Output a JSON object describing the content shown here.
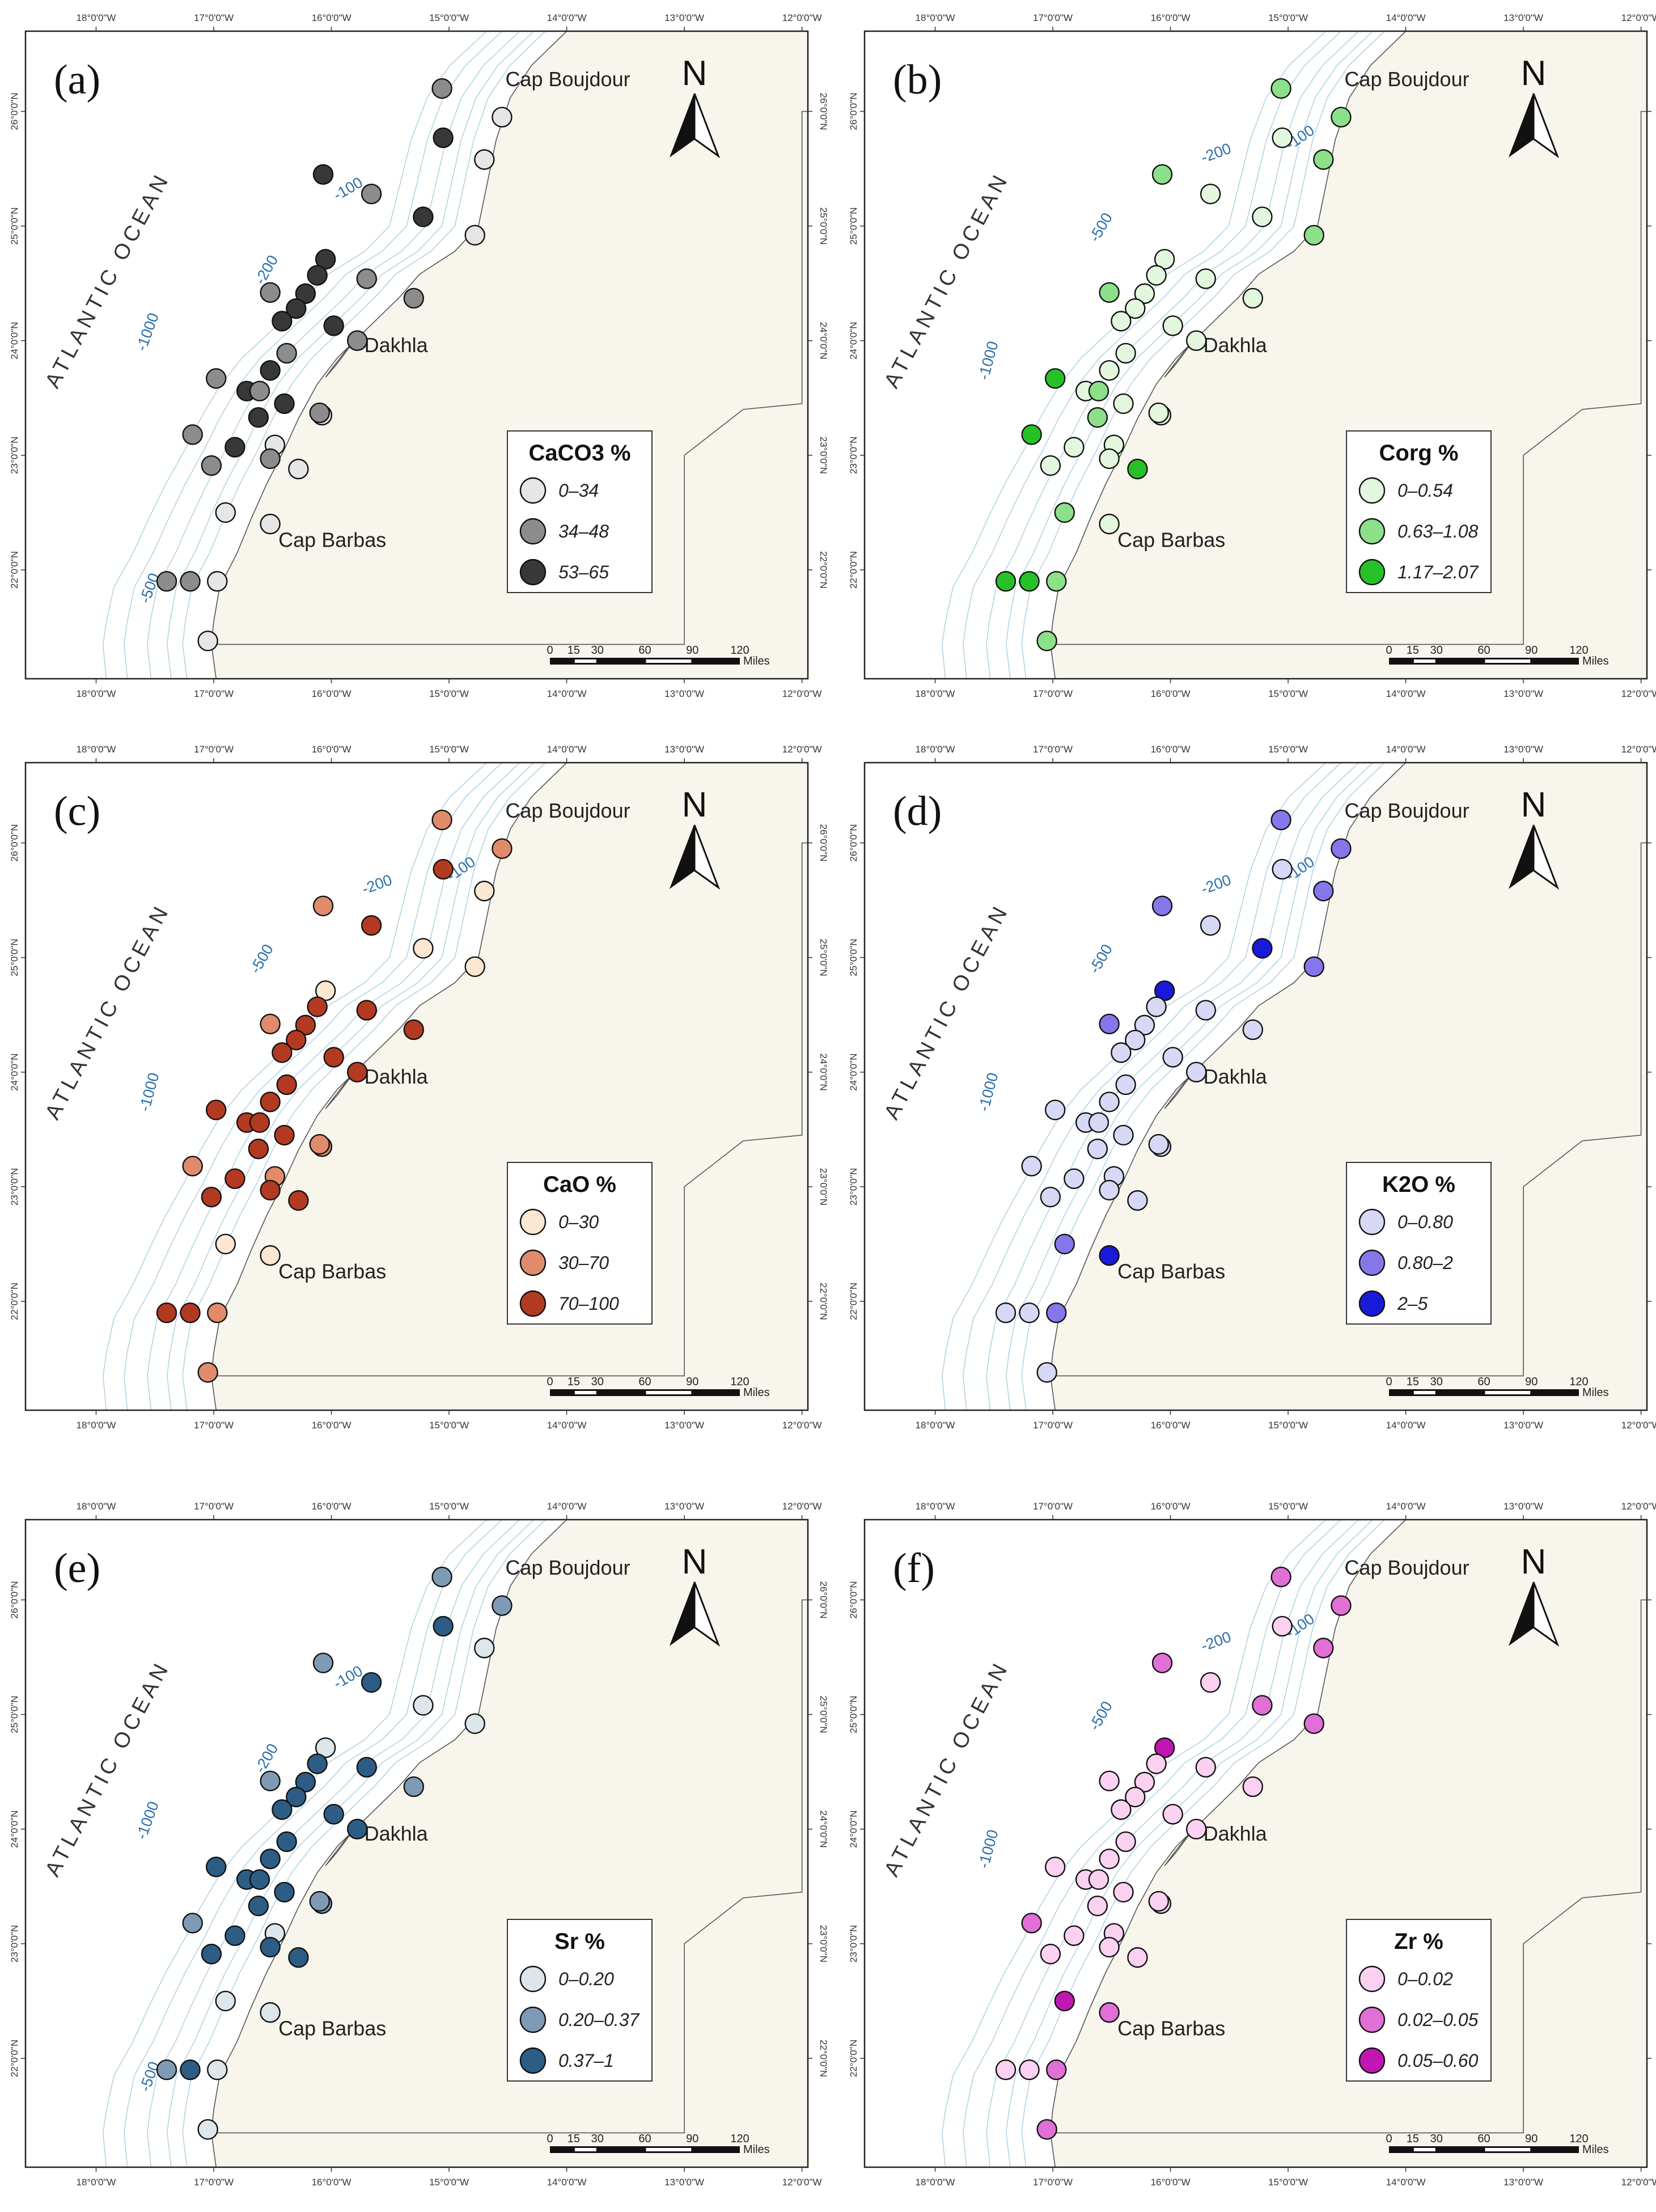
{
  "common": {
    "lon_ticks": [
      "18°0'0\"W",
      "17°0'0\"W",
      "16°0'0\"W",
      "15°0'0\"W",
      "14°0'0\"W",
      "13°0'0\"W",
      "12°0'0\"W"
    ],
    "lat_ticks": [
      "26°0'0\"N",
      "25°0'0\"N",
      "24°0'0\"N",
      "23°0'0\"N",
      "22°0'0\"N"
    ],
    "ocean_label": "ATLANTIC OCEAN",
    "places": {
      "cap_boujdour": "Cap Boujdour",
      "dakhla": "Dakhla",
      "cap_barbas": "Cap Barbas"
    },
    "depths": [
      "-100",
      "-200",
      "-500",
      "-1000"
    ],
    "north": "N",
    "scale_numbers": [
      "0",
      "15",
      "30",
      "60",
      "90",
      "120"
    ],
    "scale_unit": "Miles",
    "stations": [
      {
        "lon": -15.06,
        "lat": 26.2
      },
      {
        "lon": -14.55,
        "lat": 25.95
      },
      {
        "lon": -15.05,
        "lat": 25.77
      },
      {
        "lon": -14.7,
        "lat": 25.58
      },
      {
        "lon": -16.07,
        "lat": 25.45
      },
      {
        "lon": -15.66,
        "lat": 25.28
      },
      {
        "lon": -15.22,
        "lat": 25.08
      },
      {
        "lon": -14.78,
        "lat": 24.92
      },
      {
        "lon": -16.05,
        "lat": 24.71
      },
      {
        "lon": -16.12,
        "lat": 24.57
      },
      {
        "lon": -16.52,
        "lat": 24.42
      },
      {
        "lon": -16.22,
        "lat": 24.41
      },
      {
        "lon": -15.7,
        "lat": 24.54
      },
      {
        "lon": -15.3,
        "lat": 24.37
      },
      {
        "lon": -16.3,
        "lat": 24.28
      },
      {
        "lon": -16.42,
        "lat": 24.17
      },
      {
        "lon": -15.98,
        "lat": 24.13
      },
      {
        "lon": -15.78,
        "lat": 24.0
      },
      {
        "lon": -16.38,
        "lat": 23.89
      },
      {
        "lon": -16.52,
        "lat": 23.74
      },
      {
        "lon": -16.98,
        "lat": 23.67
      },
      {
        "lon": -16.72,
        "lat": 23.56
      },
      {
        "lon": -16.61,
        "lat": 23.56
      },
      {
        "lon": -16.4,
        "lat": 23.45
      },
      {
        "lon": -16.62,
        "lat": 23.33
      },
      {
        "lon": -16.08,
        "lat": 23.35
      },
      {
        "lon": -16.48,
        "lat": 23.09
      },
      {
        "lon": -16.1,
        "lat": 23.37
      },
      {
        "lon": -17.18,
        "lat": 23.18
      },
      {
        "lon": -16.82,
        "lat": 23.07
      },
      {
        "lon": -16.52,
        "lat": 22.97
      },
      {
        "lon": -17.02,
        "lat": 22.91
      },
      {
        "lon": -16.28,
        "lat": 22.88
      },
      {
        "lon": -16.9,
        "lat": 22.5
      },
      {
        "lon": -16.52,
        "lat": 22.4
      },
      {
        "lon": -17.4,
        "lat": 21.9
      },
      {
        "lon": -17.2,
        "lat": 21.9
      },
      {
        "lon": -16.97,
        "lat": 21.9
      },
      {
        "lon": -17.05,
        "lat": 21.38
      }
    ]
  },
  "panels": [
    {
      "letter": "(a)",
      "legend_title": "CaCO3 %",
      "classes": [
        "0–34",
        "34–48",
        "53–65"
      ],
      "colors": [
        "#e6e6e6",
        "#8c8c8c",
        "#383838"
      ],
      "station_class": [
        1,
        0,
        2,
        0,
        2,
        1,
        2,
        0,
        2,
        2,
        1,
        2,
        1,
        1,
        2,
        2,
        2,
        1,
        1,
        2,
        1,
        2,
        1,
        2,
        2,
        0,
        0,
        1,
        1,
        2,
        1,
        1,
        0,
        0,
        0,
        1,
        1,
        0,
        0
      ]
    },
    {
      "letter": "(b)",
      "legend_title": "Corg %",
      "classes": [
        "0–0.54",
        "0.63–1.08",
        "1.17–2.07"
      ],
      "colors": [
        "#e3f7de",
        "#8ce089",
        "#27c127"
      ],
      "station_class": [
        1,
        1,
        0,
        1,
        1,
        0,
        0,
        1,
        0,
        0,
        1,
        0,
        0,
        0,
        0,
        0,
        0,
        0,
        0,
        0,
        2,
        0,
        1,
        0,
        1,
        0,
        0,
        0,
        2,
        0,
        0,
        0,
        2,
        1,
        0,
        2,
        2,
        1,
        1
      ]
    },
    {
      "letter": "(c)",
      "legend_title": "CaO %",
      "classes": [
        "0–30",
        "30–70",
        "70–100"
      ],
      "colors": [
        "#fbe7d2",
        "#df8b6c",
        "#b23a21"
      ],
      "station_class": [
        1,
        1,
        2,
        0,
        1,
        2,
        0,
        0,
        0,
        2,
        1,
        2,
        2,
        2,
        2,
        2,
        2,
        2,
        2,
        2,
        2,
        2,
        2,
        2,
        2,
        1,
        1,
        1,
        1,
        2,
        2,
        2,
        2,
        0,
        0,
        2,
        2,
        1,
        1
      ]
    },
    {
      "letter": "(d)",
      "legend_title": "K2O %",
      "classes": [
        "0–0.80",
        "0.80–2",
        "2–5"
      ],
      "colors": [
        "#d6d8f5",
        "#8577ea",
        "#1a1ad9"
      ],
      "station_class": [
        1,
        1,
        0,
        1,
        1,
        0,
        2,
        1,
        2,
        0,
        1,
        0,
        0,
        0,
        0,
        0,
        0,
        0,
        0,
        0,
        0,
        0,
        0,
        0,
        0,
        0,
        0,
        0,
        0,
        0,
        0,
        0,
        0,
        1,
        2,
        0,
        0,
        1,
        0
      ]
    },
    {
      "letter": "(e)",
      "legend_title": "Sr %",
      "classes": [
        "0–0.20",
        "0.20–0.37",
        "0.37–1"
      ],
      "colors": [
        "#dde6ea",
        "#7f9ab5",
        "#2d5d85"
      ],
      "station_class": [
        1,
        1,
        2,
        0,
        1,
        2,
        0,
        0,
        0,
        2,
        1,
        2,
        2,
        1,
        2,
        2,
        2,
        2,
        2,
        2,
        2,
        2,
        2,
        2,
        2,
        1,
        0,
        1,
        1,
        2,
        2,
        2,
        2,
        0,
        0,
        1,
        2,
        0,
        0
      ]
    },
    {
      "letter": "(f)",
      "legend_title": "Zr %",
      "classes": [
        "0–0.02",
        "0.02–0.05",
        "0.05–0.60"
      ],
      "colors": [
        "#fbd1f2",
        "#e06fd6",
        "#c016b2"
      ],
      "station_class": [
        1,
        1,
        0,
        1,
        1,
        0,
        1,
        1,
        2,
        0,
        0,
        0,
        0,
        0,
        0,
        0,
        0,
        0,
        0,
        0,
        0,
        0,
        0,
        0,
        0,
        0,
        0,
        0,
        1,
        0,
        0,
        0,
        0,
        2,
        1,
        0,
        0,
        1,
        1
      ]
    }
  ]
}
